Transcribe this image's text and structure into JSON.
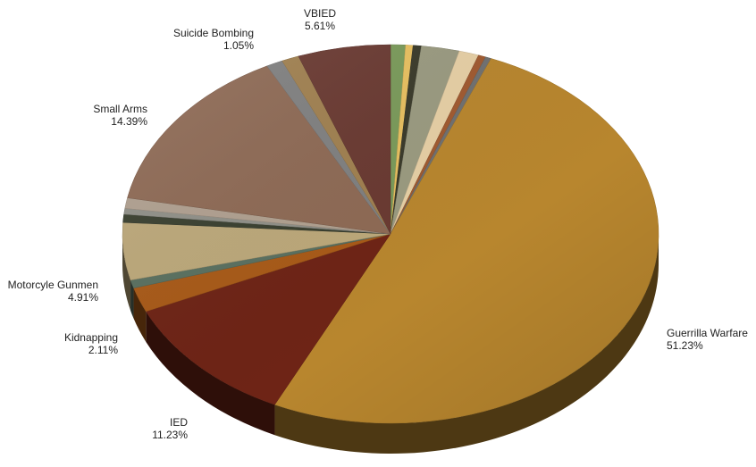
{
  "chart_data": {
    "type": "pie",
    "title": "",
    "slices": [
      {
        "label": "",
        "value": 0.9,
        "color": "#7a9a5a"
      },
      {
        "label": "",
        "value": 0.45,
        "color": "#e8c060"
      },
      {
        "label": "",
        "value": 0.5,
        "color": "#3a3a2a"
      },
      {
        "label": "",
        "value": 2.3,
        "color": "#9a9a80"
      },
      {
        "label": "",
        "value": 1.2,
        "color": "#e6cfa5"
      },
      {
        "label": "",
        "value": 0.45,
        "color": "#a05a30"
      },
      {
        "label": "",
        "value": 0.35,
        "color": "#707070"
      },
      {
        "label": "Guerrilla Warfare",
        "value": 51.23,
        "display": "51.23%",
        "color": "#b8862e"
      },
      {
        "label": "IED",
        "value": 11.23,
        "display": "11.23%",
        "color": "#6e2416"
      },
      {
        "label": "Kidnapping",
        "value": 2.11,
        "display": "2.11%",
        "color": "#a85a18"
      },
      {
        "label": "",
        "value": 0.7,
        "color": "#5a7060"
      },
      {
        "label": "Motorcyle Gunmen",
        "value": 4.91,
        "display": "4.91%",
        "color": "#bca87a"
      },
      {
        "label": "",
        "value": 0.7,
        "color": "#3a4030"
      },
      {
        "label": "",
        "value": 0.5,
        "color": "#909088"
      },
      {
        "label": "",
        "value": 0.9,
        "color": "#b0a090"
      },
      {
        "label": "Small Arms",
        "value": 14.39,
        "display": "14.39%",
        "color": "#8e6a55"
      },
      {
        "label": "",
        "value": 1.0,
        "color": "#808080"
      },
      {
        "label": "Suicide Bombing",
        "value": 1.05,
        "display": "1.05%",
        "color": "#a08050"
      },
      {
        "label": "VBIED",
        "value": 5.61,
        "display": "5.61%",
        "color": "#6a3a32"
      }
    ],
    "legend": "none",
    "labels": [
      {
        "name": "Guerrilla Warfare",
        "pct": "51.23%"
      },
      {
        "name": "IED",
        "pct": "11.23%"
      },
      {
        "name": "Kidnapping",
        "pct": "2.11%"
      },
      {
        "name": "Motorcyle Gunmen",
        "pct": "4.91%"
      },
      {
        "name": "Small Arms",
        "pct": "14.39%"
      },
      {
        "name": "Suicide Bombing",
        "pct": "1.05%"
      },
      {
        "name": "VBIED",
        "pct": "5.61%"
      }
    ]
  }
}
